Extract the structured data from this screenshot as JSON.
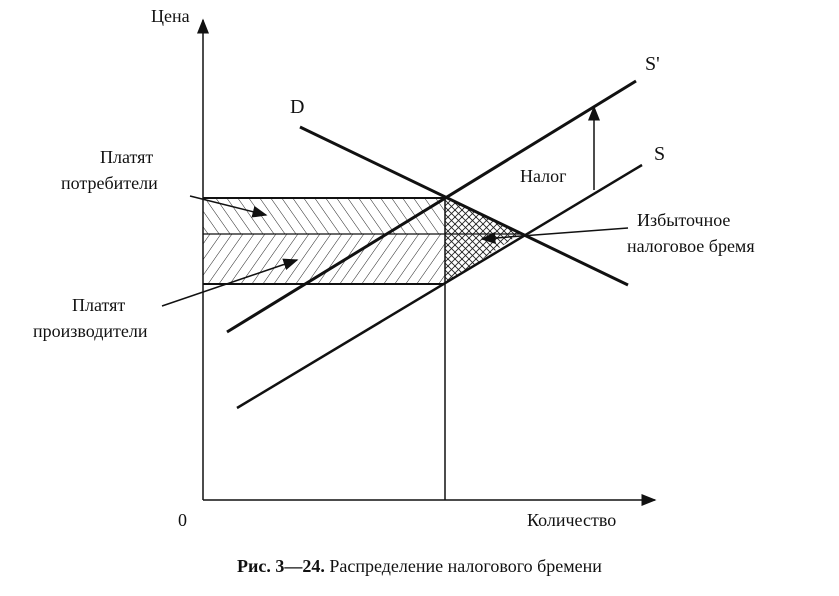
{
  "axes": {
    "y_label": "Цена",
    "x_label": "Количество",
    "origin": "0"
  },
  "curves": {
    "demand": "D",
    "supply": "S",
    "supply_taxed": "S'"
  },
  "labels": {
    "tax": "Налог",
    "consumers_pay_line1": "Платят",
    "consumers_pay_line2": "потребители",
    "producers_pay_line1": "Платят",
    "producers_pay_line2": "производители",
    "excess_line1": "Избыточное",
    "excess_line2": "налоговое бремя"
  },
  "caption": {
    "number": "Рис. 3—24.",
    "text": " Распределение налогового бремени"
  }
}
